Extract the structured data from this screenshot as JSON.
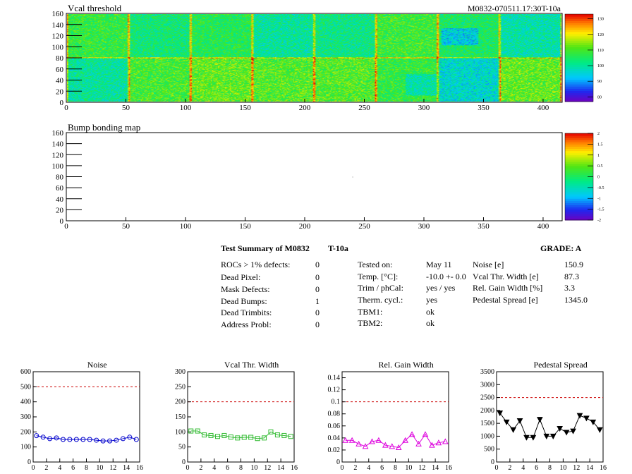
{
  "heatmaps": [
    {
      "title": "Vcal threshold",
      "corner_label": "M0832-070511.17:30T-10a",
      "x_ticks": [
        "0",
        "50",
        "100",
        "150",
        "200",
        "250",
        "300",
        "350",
        "400"
      ],
      "y_ticks": [
        "0",
        "20",
        "40",
        "60",
        "80",
        "100",
        "120",
        "140",
        "160"
      ],
      "colorbar_ticks": [
        "80",
        "90",
        "100",
        "110",
        "120",
        "130"
      ],
      "colorbar_range": [
        77,
        133
      ]
    },
    {
      "title": "Bump bonding map",
      "x_ticks": [
        "0",
        "50",
        "100",
        "150",
        "200",
        "250",
        "300",
        "350",
        "400"
      ],
      "y_ticks": [
        "0",
        "20",
        "40",
        "60",
        "80",
        "100",
        "120",
        "140",
        "160"
      ],
      "colorbar_ticks": [
        "-2",
        "-1.5",
        "-1",
        "-0.5",
        "0",
        "0.5",
        "1",
        "1.5",
        "2"
      ],
      "colorbar_range": [
        -2,
        2
      ]
    }
  ],
  "summary": {
    "title": "Test Summary of M0832",
    "temp_label": "T-10a",
    "grade": "GRADE:  A",
    "defects": [
      {
        "label": "ROCs > 1% defects:",
        "value": "0"
      },
      {
        "label": "Dead Pixel:",
        "value": "0"
      },
      {
        "label": "Mask Defects:",
        "value": "0"
      },
      {
        "label": "Dead Bumps:",
        "value": "1"
      },
      {
        "label": "Dead Trimbits:",
        "value": "0"
      },
      {
        "label": "Address Probl:",
        "value": "0"
      }
    ],
    "conditions": [
      {
        "label": "Tested on:",
        "value": "May 11"
      },
      {
        "label": "Temp. [°C]:",
        "value": "-10.0 +- 0.0"
      },
      {
        "label": "Trim / phCal:",
        "value": "yes / yes"
      },
      {
        "label": "Therm. cycl.:",
        "value": "yes"
      },
      {
        "label": "TBM1:",
        "value": "ok"
      },
      {
        "label": "TBM2:",
        "value": "ok"
      }
    ],
    "metrics": [
      {
        "label": "Noise [e]",
        "value": "150.9"
      },
      {
        "label": "Vcal Thr. Width [e]",
        "value": "87.3"
      },
      {
        "label": "Rel. Gain Width [%]",
        "value": "3.3"
      },
      {
        "label": "Pedestal Spread [e]",
        "value": "1345.0"
      }
    ]
  },
  "chart_data": [
    {
      "type": "line",
      "title": "Noise",
      "x": [
        0,
        1,
        2,
        3,
        4,
        5,
        6,
        7,
        8,
        9,
        10,
        11,
        12,
        13,
        14,
        15
      ],
      "values": [
        175,
        165,
        155,
        160,
        150,
        150,
        150,
        150,
        150,
        145,
        140,
        140,
        145,
        155,
        165,
        150
      ],
      "ylim": [
        0,
        600
      ],
      "y_ticks": [
        "0",
        "100",
        "200",
        "300",
        "400",
        "500",
        "600"
      ],
      "x_ticks": [
        "0",
        "2",
        "4",
        "6",
        "8",
        "10",
        "12",
        "14",
        "16"
      ],
      "threshold": 500,
      "color": "#0000cc",
      "marker": "circle"
    },
    {
      "type": "line",
      "title": "Vcal Thr. Width",
      "x": [
        0,
        1,
        2,
        3,
        4,
        5,
        6,
        7,
        8,
        9,
        10,
        11,
        12,
        13,
        14,
        15
      ],
      "values": [
        103,
        103,
        90,
        88,
        85,
        88,
        83,
        80,
        82,
        82,
        78,
        80,
        100,
        90,
        88,
        85
      ],
      "ylim": [
        0,
        300
      ],
      "y_ticks": [
        "0",
        "50",
        "100",
        "150",
        "200",
        "250",
        "300"
      ],
      "x_ticks": [
        "0",
        "2",
        "4",
        "6",
        "8",
        "10",
        "12",
        "14",
        "16"
      ],
      "threshold": 200,
      "color": "#33bb33",
      "marker": "square"
    },
    {
      "type": "line",
      "title": "Rel. Gain Width",
      "x": [
        0,
        1,
        2,
        3,
        4,
        5,
        6,
        7,
        8,
        9,
        10,
        11,
        12,
        13,
        14,
        15
      ],
      "values": [
        0.036,
        0.036,
        0.03,
        0.026,
        0.034,
        0.036,
        0.028,
        0.026,
        0.024,
        0.036,
        0.046,
        0.03,
        0.046,
        0.028,
        0.032,
        0.034
      ],
      "ylim": [
        0,
        0.15
      ],
      "y_ticks": [
        "0",
        "0.02",
        "0.04",
        "0.06",
        "0.08",
        "0.1",
        "0.12",
        "0.14"
      ],
      "x_ticks": [
        "0",
        "2",
        "4",
        "6",
        "8",
        "10",
        "12",
        "14",
        "16"
      ],
      "threshold": 0.1,
      "color": "#dd00dd",
      "marker": "triangle-up"
    },
    {
      "type": "line",
      "title": "Pedestal Spread",
      "x": [
        0,
        1,
        2,
        3,
        4,
        5,
        6,
        7,
        8,
        9,
        10,
        11,
        12,
        13,
        14,
        15
      ],
      "values": [
        1900,
        1550,
        1250,
        1600,
        950,
        950,
        1650,
        1000,
        1000,
        1300,
        1150,
        1200,
        1800,
        1700,
        1550,
        1250
      ],
      "ylim": [
        0,
        3500
      ],
      "y_ticks": [
        "0",
        "500",
        "1000",
        "1500",
        "2000",
        "2500",
        "3000",
        "3500"
      ],
      "x_ticks": [
        "0",
        "2",
        "4",
        "6",
        "8",
        "10",
        "12",
        "14",
        "16"
      ],
      "threshold": 2500,
      "color": "#000000",
      "marker": "triangle-down"
    }
  ]
}
